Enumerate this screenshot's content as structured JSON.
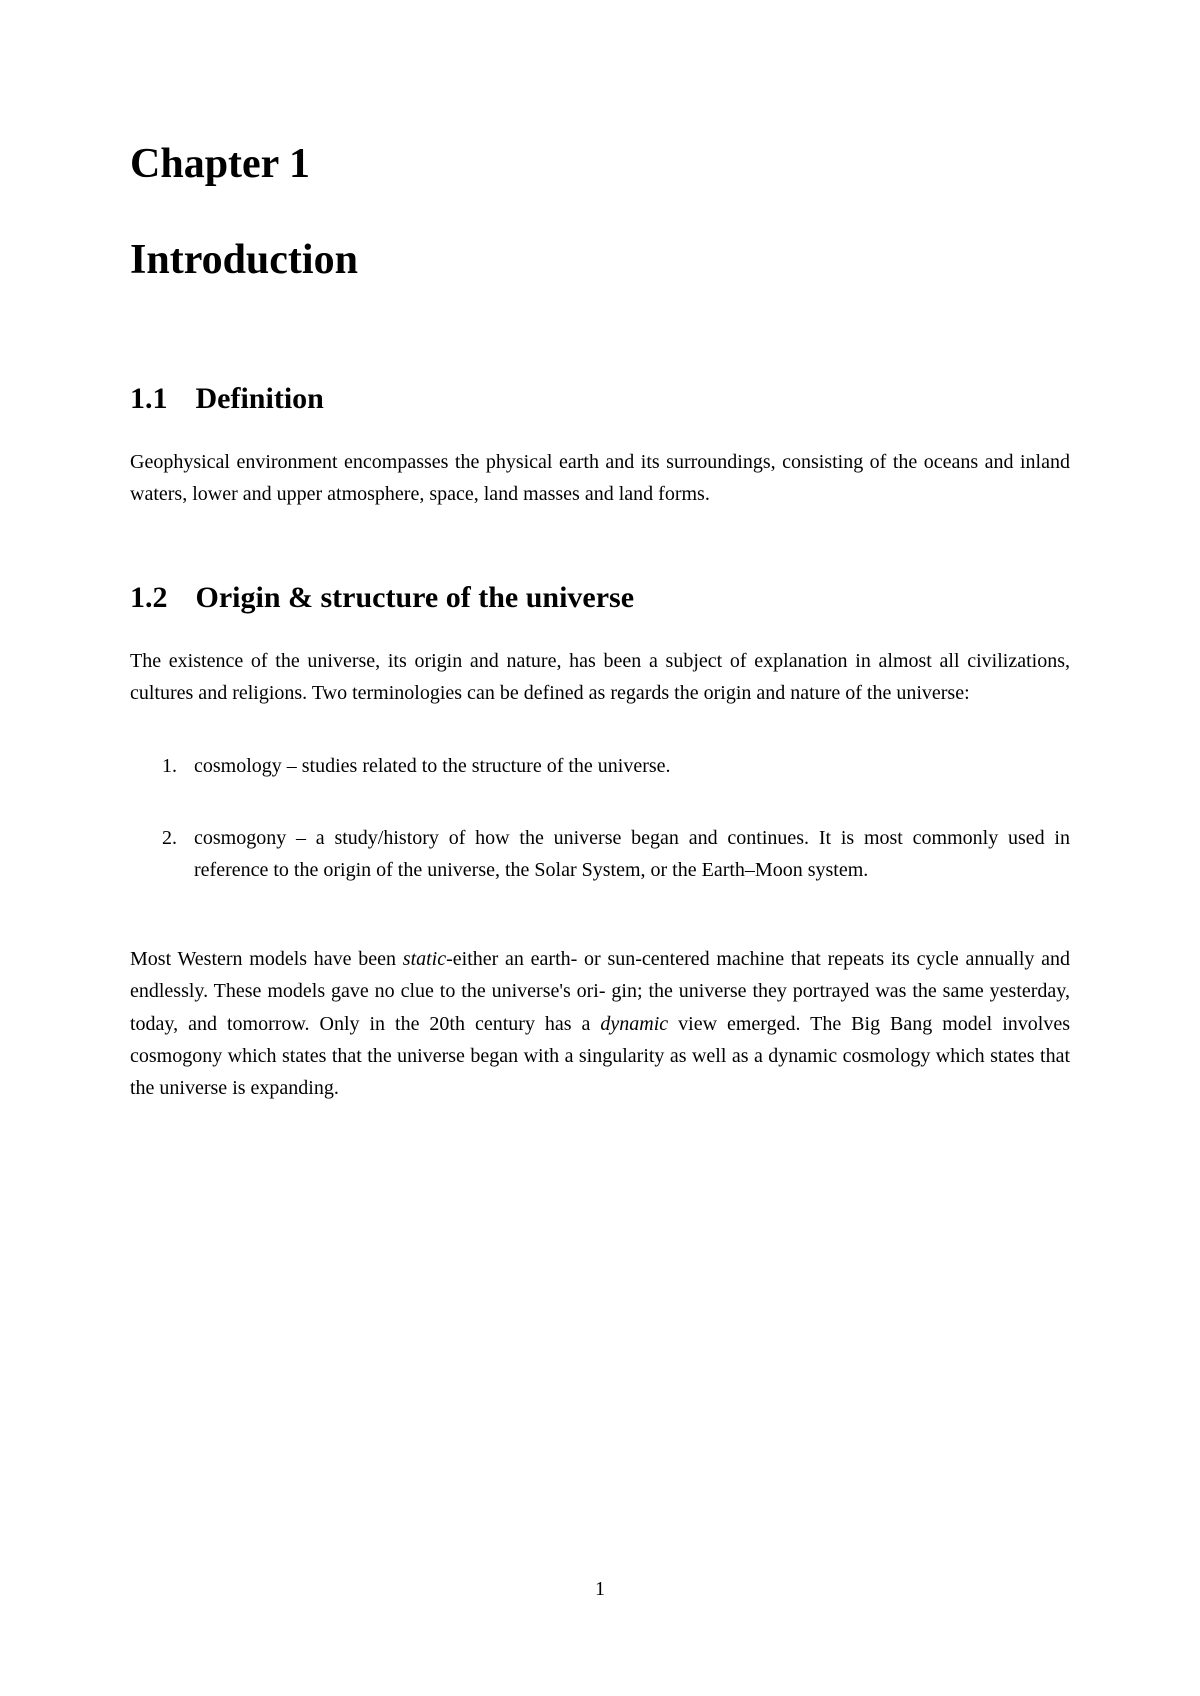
{
  "chapter": {
    "label": "Chapter 1",
    "title": "Introduction"
  },
  "sections": {
    "s1": {
      "number": "1.1",
      "title": "Definition",
      "body": "Geophysical environment encompasses the physical earth and its surroundings, consisting of the oceans and inland waters, lower and upper atmosphere, space, land masses and land forms."
    },
    "s2": {
      "number": "1.2",
      "title": "Origin & structure of the universe",
      "intro": "The existence of the universe, its origin and nature, has been a subject of explanation in almost all civilizations, cultures and religions. Two terminologies can be defined as regards the origin and nature of the universe:",
      "items": [
        {
          "marker": "1.",
          "text": "cosmology – studies related to the structure of the universe."
        },
        {
          "marker": "2.",
          "text": "cosmogony – a study/history of how the universe began and continues. It is most commonly used in reference to the origin of the universe, the Solar System, or the Earth–Moon system."
        }
      ],
      "para2_part1": "Most Western models have been ",
      "para2_italic1": "static",
      "para2_part2": "-either an earth- or sun-centered machine that repeats its cycle annually and endlessly. These models gave no clue to the universe's ori- gin; the universe they portrayed was the same yesterday, today, and tomorrow. Only in the 20th century has a ",
      "para2_italic2": "dynamic",
      "para2_part3": " view emerged. The Big Bang model involves cosmogony which states that the universe began with a singularity as well as a dynamic cosmology which states that the universe is expanding."
    }
  },
  "page_number": "1",
  "styling": {
    "background_color": "#ffffff",
    "text_color": "#000000",
    "font_family": "Georgia, Times New Roman, serif",
    "chapter_fontsize": 42,
    "section_fontsize": 30,
    "body_fontsize": 20,
    "line_height": 1.62
  }
}
